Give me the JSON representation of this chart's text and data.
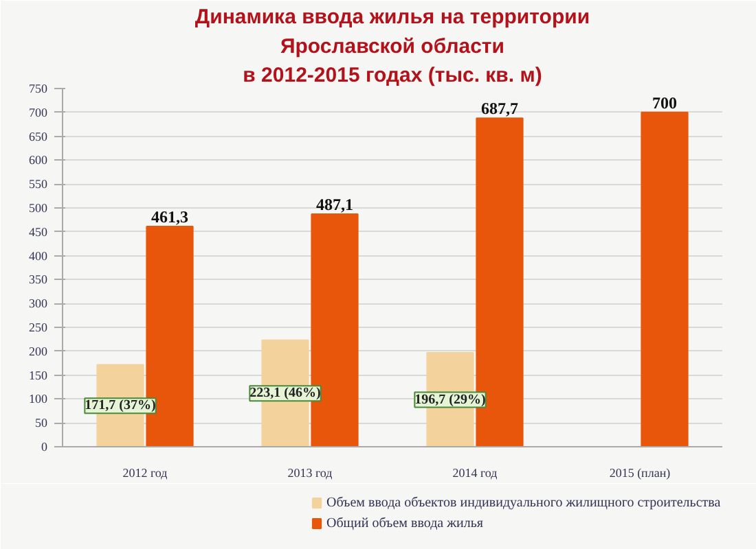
{
  "chart_data": {
    "type": "bar",
    "title": "Динамика ввода жилья на территории\nЯрославской области\nв 2012-2015 годах (тыс. кв. м)",
    "categories": [
      "2012 год",
      "2013 год",
      "2014 год",
      "2015 (план)"
    ],
    "series": [
      {
        "name": "Объем ввода объектов индивидуального жилищного строительства",
        "color": "#f3d39b",
        "values": [
          171.7,
          223.1,
          196.7,
          null
        ],
        "value_labels": [
          "171,7 (37%)",
          "223,1 (46%)",
          "196,7 (29%)",
          null
        ]
      },
      {
        "name": "Общий объем ввода жилья",
        "color": "#e8560c",
        "values": [
          461.3,
          487.1,
          687.7,
          700
        ],
        "value_labels": [
          "461,3",
          "487,1",
          "687,7",
          "700"
        ]
      }
    ],
    "ylim": [
      0,
      750
    ],
    "yticks": [
      0,
      50,
      100,
      150,
      200,
      250,
      300,
      350,
      400,
      450,
      500,
      550,
      600,
      650,
      700,
      750
    ],
    "grid": "y",
    "legend": "bottom"
  }
}
